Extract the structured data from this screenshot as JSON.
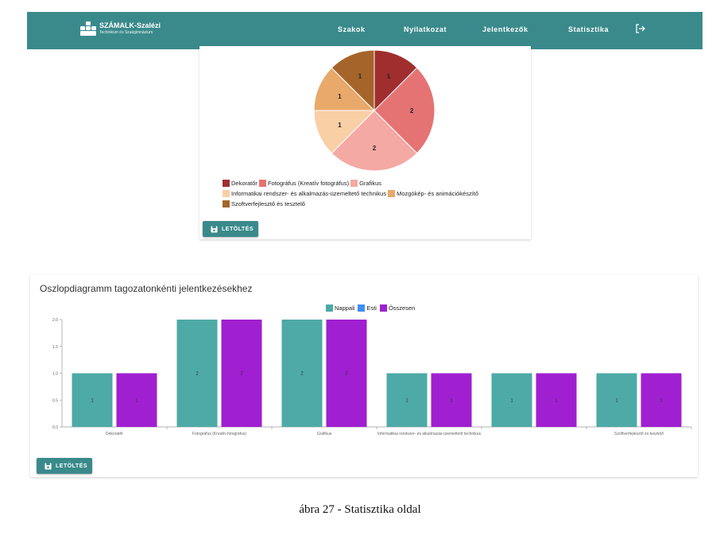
{
  "navbar": {
    "brand_name": "SZÁMALK-Szalézi",
    "brand_sub": "Technikum és Szakgimnázium",
    "items": [
      {
        "label": "Szakok"
      },
      {
        "label": "Nyilatkozat"
      },
      {
        "label": "Jelentkezők"
      },
      {
        "label": "Statisztika"
      }
    ],
    "logout_icon": "logout-icon",
    "bg_color": "#3a8a8b"
  },
  "pie_card": {
    "download_label": "LETÖLTÉS",
    "download_icon": "save-icon"
  },
  "bar_card": {
    "title": "Oszlopdiagramm tagozatonkénti jelentkezésekhez",
    "download_label": "LETÖLTÉS",
    "download_icon": "save-icon"
  },
  "chart_data": [
    {
      "type": "pie",
      "categories": [
        "Dekoratőr",
        "Fotográfus (Kreatív fotográfus)",
        "Grafikus",
        "Informatikai rendszer- és alkalmazás-üzemeltető technikus",
        "Mozgókép- és animációkészítő",
        "Szoftverfejlesztő és tesztelő"
      ],
      "values": [
        1,
        2,
        2,
        1,
        1,
        1
      ],
      "colors": [
        "#a12e2e",
        "#e57373",
        "#f4a9a4",
        "#f9cfa6",
        "#e8a96b",
        "#a5652a"
      ],
      "legend": "bottom"
    },
    {
      "type": "bar",
      "title": "Oszlopdiagramm tagozatonkénti jelentkezésekhez",
      "categories": [
        "Dekoratőr",
        "Fotográfus (Kreatív fotográfus)",
        "Grafikus",
        "Informatikai rendszer- és alkalmazás-üzemeltető technikus",
        "",
        "Szoftverfejlesztő és tesztelő"
      ],
      "series": [
        {
          "name": "Nappali",
          "values": [
            1,
            2,
            2,
            1,
            1,
            1
          ],
          "color": "#4daaa7"
        },
        {
          "name": "Esti",
          "values": [
            0,
            0,
            0,
            0,
            0,
            0
          ],
          "color": "#3f8ef5"
        },
        {
          "name": "Összesen",
          "values": [
            1,
            2,
            2,
            1,
            1,
            1
          ],
          "color": "#a01fd1"
        }
      ],
      "yticks": [
        "0.0",
        "0.5",
        "1.0",
        "1.5",
        "2.0"
      ],
      "ylim": [
        0,
        2
      ],
      "legend": "top"
    }
  ],
  "caption": "ábra 27 - Statisztika oldal"
}
